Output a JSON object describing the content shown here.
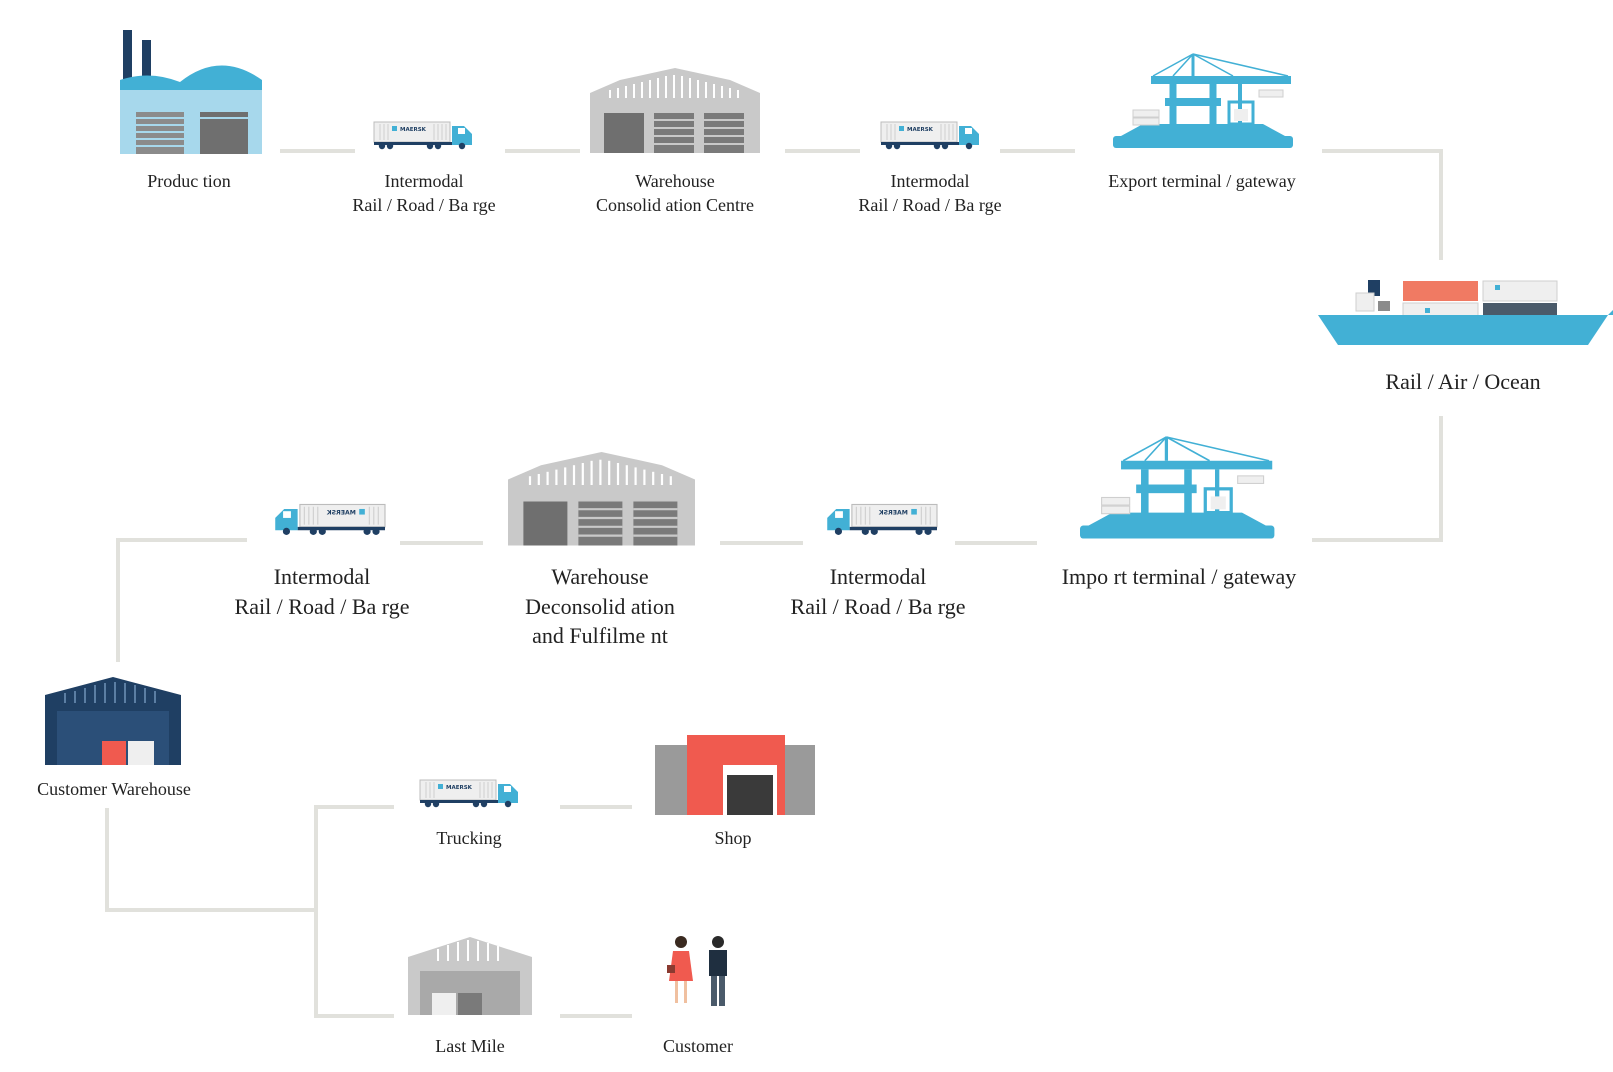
{
  "nodes": {
    "production": {
      "lines": [
        "Produc tion"
      ]
    },
    "intermodal_1": {
      "lines": [
        "Intermodal",
        "Rail /  Road / Ba rge"
      ]
    },
    "warehouse_consolidation": {
      "lines": [
        "Warehouse",
        "Consolid ation  Centre"
      ]
    },
    "intermodal_2": {
      "lines": [
        "Intermodal",
        "Rail /  Road / Ba rge"
      ]
    },
    "export_terminal": {
      "lines": [
        "Export terminal /    gateway"
      ]
    },
    "transport": {
      "lines": [
        "Rail / Air /  Ocean"
      ]
    },
    "import_terminal": {
      "lines": [
        "Impo rt terminal /    gateway"
      ]
    },
    "intermodal_3": {
      "lines": [
        "Intermodal",
        "Rail /  Road / Ba rge"
      ]
    },
    "warehouse_deconsolidation": {
      "lines": [
        "Warehouse",
        "Deconsolid ation",
        "and  Fulfilme nt"
      ]
    },
    "intermodal_4": {
      "lines": [
        "Intermodal",
        "Rail /  Road / Ba rge"
      ]
    },
    "customer_warehouse": {
      "lines": [
        "Customer  Warehouse"
      ]
    },
    "trucking": {
      "lines": [
        "Trucking"
      ]
    },
    "shop": {
      "lines": [
        "Shop"
      ]
    },
    "last_mile": {
      "lines": [
        "Last Mile"
      ]
    },
    "customer": {
      "lines": [
        "Customer"
      ]
    }
  },
  "truck_logo_text": "MAERSK",
  "icons": {
    "production": "factory-icon",
    "intermodal": "truck-icon",
    "warehouse": "warehouse-icon",
    "terminal": "port-crane-icon",
    "transport": "container-ship-icon",
    "customer_warehouse": "dark-warehouse-icon",
    "shop": "shop-icon",
    "last_mile": "small-warehouse-icon",
    "customer": "people-icon"
  },
  "colors": {
    "connector": "#e1e1dc",
    "maersk_blue": "#42b0d5",
    "warehouse_grey": "#c8c8c8",
    "dark_navy": "#1f3f63",
    "shop_red": "#f05a4f",
    "ship_container_red": "#f07a63"
  }
}
